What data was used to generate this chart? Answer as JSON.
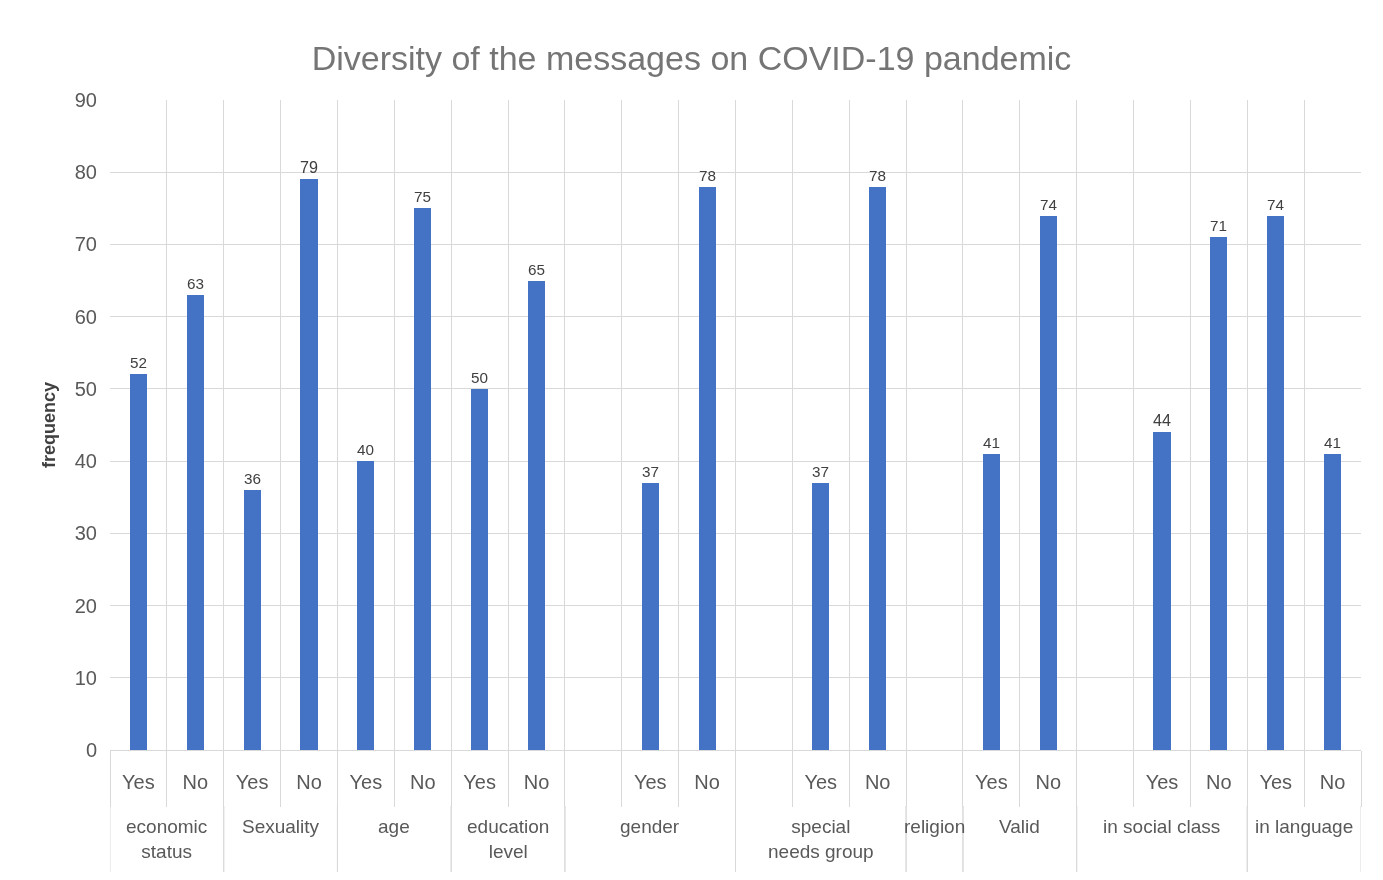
{
  "chart_data": {
    "type": "bar",
    "title": "Diversity of the messages on COVID-19 pandemic",
    "ylabel": "frequency",
    "categories": [
      "Yes",
      "No",
      "Yes",
      "No",
      "Yes",
      "No",
      "Yes",
      "No",
      null,
      "Yes",
      "No",
      null,
      "Yes",
      "No",
      null,
      "Yes",
      "No",
      null,
      "Yes",
      "No",
      "Yes",
      "No"
    ],
    "values": [
      52,
      63,
      36,
      79,
      40,
      75,
      50,
      65,
      null,
      37,
      78,
      null,
      37,
      78,
      null,
      41,
      74,
      null,
      44,
      71,
      74,
      41
    ],
    "color": "#4472c4",
    "ylim": [
      0,
      90
    ],
    "yticks": [
      0,
      10,
      20,
      30,
      40,
      50,
      60,
      70,
      80,
      90
    ],
    "grid": true,
    "data_labels": true,
    "annotations": [
      "economic status",
      "Sexuality",
      "age",
      "education level",
      "gender",
      "special needs group",
      "religion",
      "Valid",
      "in social class",
      "in language"
    ]
  }
}
